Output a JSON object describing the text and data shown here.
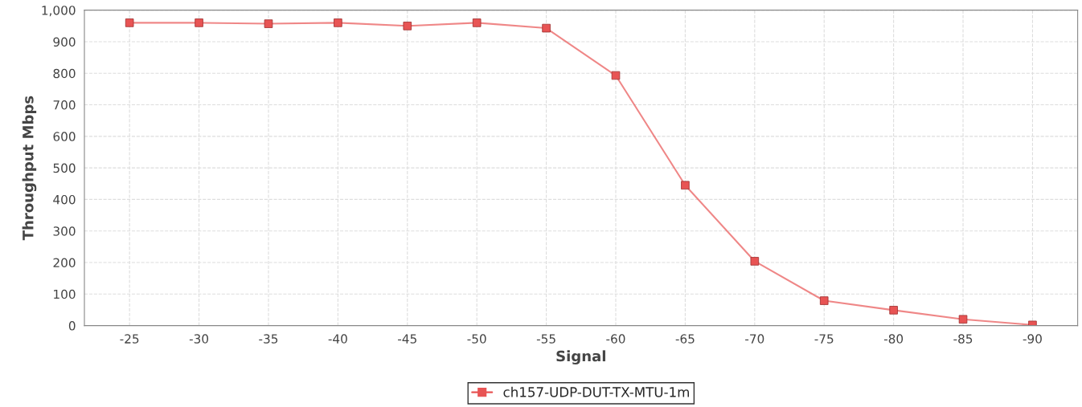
{
  "chart_data": {
    "type": "line",
    "xlabel": "Signal",
    "ylabel": "Throughput Mbps",
    "categories": [
      "-25",
      "-30",
      "-35",
      "-40",
      "-45",
      "-50",
      "-55",
      "-60",
      "-65",
      "-70",
      "-75",
      "-80",
      "-85",
      "-90"
    ],
    "series": [
      {
        "name": "ch157-UDP-DUT-TX-MTU-1m",
        "color": "#e85454",
        "values": [
          960,
          960,
          957,
          960,
          950,
          960,
          943,
          793,
          445,
          204,
          79,
          49,
          20,
          2
        ]
      }
    ],
    "ylim": [
      0,
      1000
    ],
    "yticks": [
      0,
      100,
      200,
      300,
      400,
      500,
      600,
      700,
      800,
      900,
      {
        "value": 1000,
        "label": "1,000"
      }
    ],
    "grid": true,
    "legend": "bottom",
    "marker": "square",
    "line_style": "solid"
  }
}
